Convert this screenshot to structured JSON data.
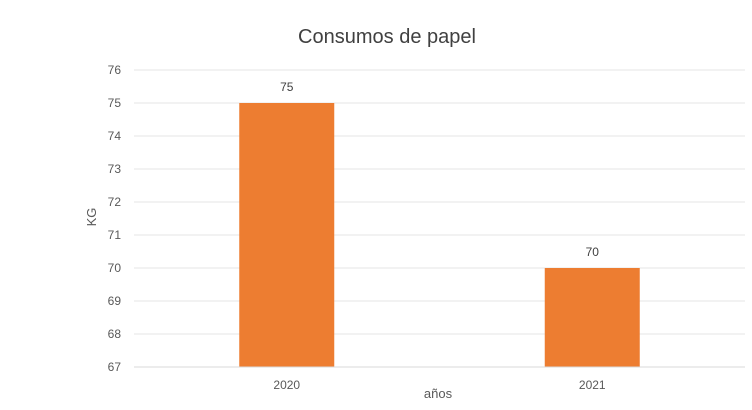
{
  "chart_data": {
    "type": "bar",
    "title": "Consumos de papel",
    "xlabel": "años",
    "ylabel": "KG",
    "categories": [
      "2020",
      "2021"
    ],
    "values": [
      75,
      70
    ],
    "ylim": [
      67,
      76
    ],
    "yticks": [
      67,
      68,
      69,
      70,
      71,
      72,
      73,
      74,
      75,
      76
    ],
    "grid": true,
    "legend": "none",
    "bar_color": "#ED7D31",
    "data_labels": [
      "75",
      "70"
    ]
  }
}
